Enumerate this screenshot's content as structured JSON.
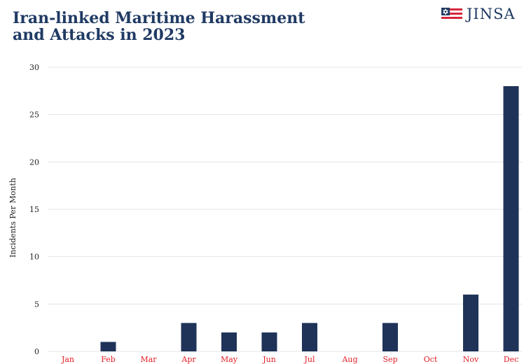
{
  "header": {
    "title_line1": "Iran-linked Maritime Harassment",
    "title_line2": "and Attacks in 2023",
    "logo_text": "JINSA",
    "logo_icon": "flag-star-icon"
  },
  "chart_data": {
    "type": "bar",
    "title": "Iran-linked Maritime Harassment and Attacks in 2023",
    "xlabel": "",
    "ylabel": "Incidents Per Month",
    "categories": [
      "Jan",
      "Feb",
      "Mar",
      "Apr",
      "May",
      "Jun",
      "Jul",
      "Aug",
      "Sep",
      "Oct",
      "Nov",
      "Dec"
    ],
    "values": [
      0,
      1,
      0,
      3,
      2,
      2,
      3,
      0,
      3,
      0,
      6,
      28
    ],
    "ylim": [
      0,
      30
    ],
    "yticks": [
      0,
      5,
      10,
      15,
      20,
      25,
      30
    ],
    "grid": true,
    "legend": "none",
    "colors": {
      "bar": "#1f3358",
      "category_label": "#e31b23",
      "title": "#1f3a63",
      "grid": "#e4e4e4"
    }
  }
}
